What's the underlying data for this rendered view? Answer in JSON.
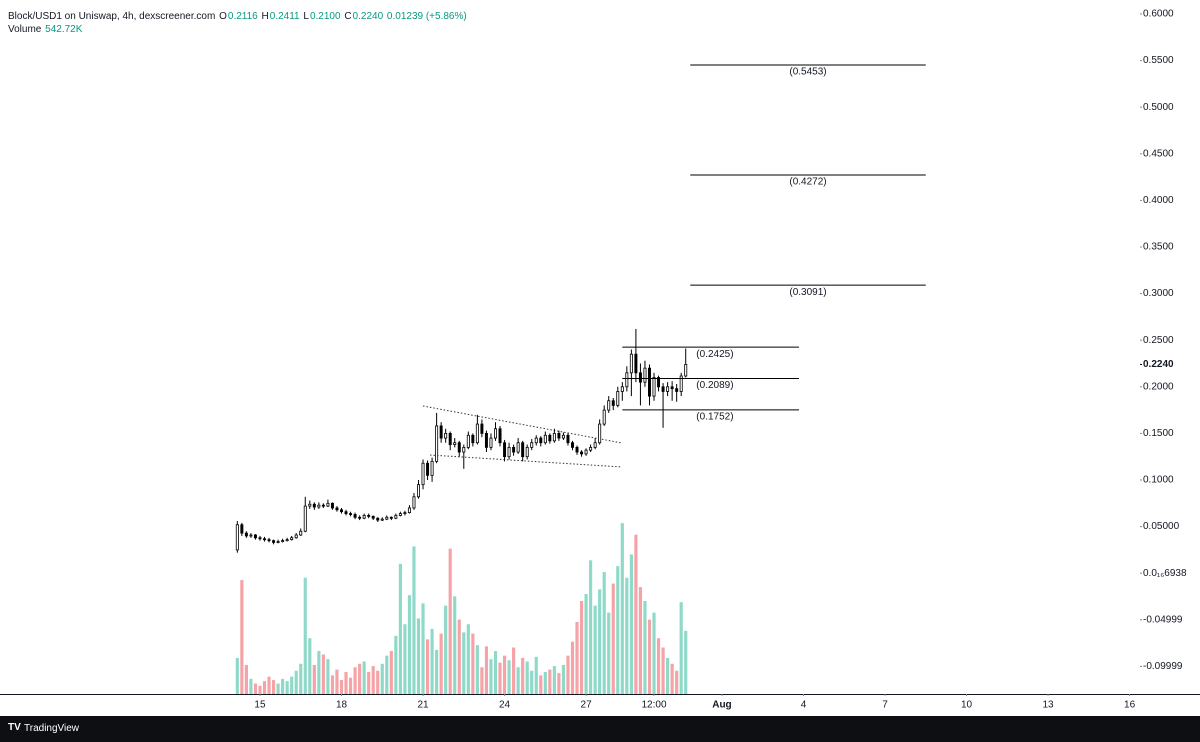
{
  "chart_data": {
    "type": "candlestick",
    "header": {
      "symbol": "Block/USD1 on Uniswap, 4h, dexscreener.com",
      "ohlc": [
        [
          "O",
          "0.2116"
        ],
        [
          "H",
          "0.2411"
        ],
        [
          "L",
          "0.2100"
        ],
        [
          "C",
          "0.2240"
        ]
      ],
      "change": "0.01239 (+5.86%)",
      "volume_name": "Volume",
      "volume_value": "542.72K"
    },
    "footer": "TradingView",
    "up_color": "#ffffff",
    "down_color": "#000000",
    "outline_color": "#000000",
    "volume_up_color": "#8fd9c9",
    "volume_down_color": "#f5a3a6",
    "xlim": [
      -57.4,
      194.3
    ],
    "xticks": [
      {
        "value": 0,
        "label": "15"
      },
      {
        "value": 18,
        "label": "18"
      },
      {
        "value": 36,
        "label": "21"
      },
      {
        "value": 54,
        "label": "24"
      },
      {
        "value": 72,
        "label": "27"
      },
      {
        "value": 87,
        "label": "12:00"
      },
      {
        "value": 102,
        "label": "Aug"
      },
      {
        "value": 120,
        "label": "4"
      },
      {
        "value": 138,
        "label": "7"
      },
      {
        "value": 156,
        "label": "10"
      },
      {
        "value": 174,
        "label": "13"
      },
      {
        "value": 192,
        "label": "16"
      }
    ],
    "ylim": [
      -0.1296,
      0.615
    ],
    "yticks": [
      {
        "value": 0.6,
        "label": "0.6000"
      },
      {
        "value": 0.55,
        "label": "0.5500"
      },
      {
        "value": 0.5,
        "label": "0.5000"
      },
      {
        "value": 0.45,
        "label": "0.4500"
      },
      {
        "value": 0.4,
        "label": "0.4000"
      },
      {
        "value": 0.35,
        "label": "0.3500"
      },
      {
        "value": 0.3,
        "label": "0.3000"
      },
      {
        "value": 0.25,
        "label": "0.2500"
      },
      {
        "value": 0.2,
        "label": "0.2000"
      },
      {
        "value": 0.15,
        "label": "0.1500"
      },
      {
        "value": 0.1,
        "label": "0.1000"
      },
      {
        "value": 0.05,
        "label": "0.05000"
      },
      {
        "value": 6.938e-17,
        "label": "0.0₁₆6938"
      },
      {
        "value": -0.04999,
        "label": "-0.04999"
      },
      {
        "value": -0.09999,
        "label": "-0.09999"
      }
    ],
    "last_price": {
      "value": 0.224,
      "label": "0.2240"
    },
    "volume_ylim": [
      0,
      5970000
    ],
    "levels": [
      {
        "value": 0.5453,
        "label": "(0.5453)",
        "xlim": [
          95,
          147
        ]
      },
      {
        "value": 0.4272,
        "label": "(0.4272)",
        "xlim": [
          95,
          147
        ]
      },
      {
        "value": 0.3091,
        "label": "(0.3091)",
        "xlim": [
          95,
          147
        ]
      },
      {
        "value": 0.2425,
        "label": "(0.2425)",
        "xlim": [
          80,
          119
        ]
      },
      {
        "value": 0.2089,
        "label": "(0.2089)",
        "xlim": [
          80,
          119
        ]
      },
      {
        "value": 0.1752,
        "label": "(0.1752)",
        "xlim": [
          80,
          119
        ]
      }
    ],
    "x": [
      -5,
      -4,
      -3,
      -2,
      -1,
      0,
      1,
      2,
      3,
      4,
      5,
      6,
      7,
      8,
      9,
      10,
      11,
      12,
      13,
      14,
      15,
      16,
      17,
      18,
      19,
      20,
      21,
      22,
      23,
      24,
      25,
      26,
      27,
      28,
      29,
      30,
      31,
      32,
      33,
      34,
      35,
      36,
      37,
      38,
      39,
      40,
      41,
      42,
      43,
      44,
      45,
      46,
      47,
      48,
      49,
      50,
      51,
      52,
      53,
      54,
      55,
      56,
      57,
      58,
      59,
      60,
      61,
      62,
      63,
      64,
      65,
      66,
      67,
      68,
      69,
      70,
      71,
      72,
      73,
      74,
      75,
      76,
      77,
      78,
      79,
      80,
      81,
      82,
      83,
      84,
      85,
      86,
      87,
      88,
      89,
      90,
      91,
      92,
      93,
      94
    ],
    "candles": [
      [
        0.025,
        0.056,
        0.022,
        0.052
      ],
      [
        0.052,
        0.054,
        0.04,
        0.043
      ],
      [
        0.043,
        0.045,
        0.038,
        0.04
      ],
      [
        0.04,
        0.043,
        0.038,
        0.041
      ],
      [
        0.041,
        0.042,
        0.036,
        0.038
      ],
      [
        0.038,
        0.04,
        0.035,
        0.037
      ],
      [
        0.037,
        0.039,
        0.034,
        0.036
      ],
      [
        0.036,
        0.038,
        0.033,
        0.035
      ],
      [
        0.035,
        0.036,
        0.031,
        0.033
      ],
      [
        0.033,
        0.036,
        0.032,
        0.034
      ],
      [
        0.034,
        0.037,
        0.033,
        0.035
      ],
      [
        0.035,
        0.038,
        0.034,
        0.036
      ],
      [
        0.036,
        0.04,
        0.035,
        0.038
      ],
      [
        0.038,
        0.043,
        0.037,
        0.041
      ],
      [
        0.041,
        0.048,
        0.04,
        0.045
      ],
      [
        0.045,
        0.082,
        0.044,
        0.072
      ],
      [
        0.072,
        0.078,
        0.069,
        0.074
      ],
      [
        0.074,
        0.076,
        0.068,
        0.071
      ],
      [
        0.071,
        0.076,
        0.069,
        0.073
      ],
      [
        0.073,
        0.075,
        0.07,
        0.072
      ],
      [
        0.072,
        0.079,
        0.071,
        0.075
      ],
      [
        0.075,
        0.076,
        0.068,
        0.07
      ],
      [
        0.07,
        0.072,
        0.066,
        0.068
      ],
      [
        0.068,
        0.07,
        0.064,
        0.066
      ],
      [
        0.066,
        0.068,
        0.062,
        0.064
      ],
      [
        0.064,
        0.066,
        0.061,
        0.063
      ],
      [
        0.063,
        0.065,
        0.058,
        0.06
      ],
      [
        0.06,
        0.062,
        0.057,
        0.059
      ],
      [
        0.059,
        0.064,
        0.058,
        0.062
      ],
      [
        0.062,
        0.064,
        0.059,
        0.061
      ],
      [
        0.061,
        0.062,
        0.057,
        0.059
      ],
      [
        0.059,
        0.06,
        0.055,
        0.057
      ],
      [
        0.057,
        0.06,
        0.056,
        0.058
      ],
      [
        0.058,
        0.062,
        0.057,
        0.06
      ],
      [
        0.06,
        0.061,
        0.057,
        0.059
      ],
      [
        0.059,
        0.064,
        0.058,
        0.062
      ],
      [
        0.062,
        0.066,
        0.061,
        0.064
      ],
      [
        0.064,
        0.067,
        0.062,
        0.065
      ],
      [
        0.065,
        0.073,
        0.064,
        0.07
      ],
      [
        0.07,
        0.086,
        0.068,
        0.082
      ],
      [
        0.082,
        0.1,
        0.08,
        0.095
      ],
      [
        0.095,
        0.122,
        0.09,
        0.118
      ],
      [
        0.118,
        0.121,
        0.1,
        0.105
      ],
      [
        0.105,
        0.124,
        0.098,
        0.12
      ],
      [
        0.12,
        0.172,
        0.118,
        0.158
      ],
      [
        0.158,
        0.162,
        0.14,
        0.145
      ],
      [
        0.145,
        0.155,
        0.14,
        0.15
      ],
      [
        0.15,
        0.152,
        0.132,
        0.138
      ],
      [
        0.138,
        0.145,
        0.135,
        0.14
      ],
      [
        0.14,
        0.142,
        0.125,
        0.13
      ],
      [
        0.13,
        0.138,
        0.112,
        0.135
      ],
      [
        0.135,
        0.152,
        0.133,
        0.148
      ],
      [
        0.148,
        0.15,
        0.136,
        0.14
      ],
      [
        0.14,
        0.17,
        0.138,
        0.16
      ],
      [
        0.16,
        0.165,
        0.146,
        0.15
      ],
      [
        0.15,
        0.153,
        0.13,
        0.135
      ],
      [
        0.135,
        0.15,
        0.132,
        0.145
      ],
      [
        0.145,
        0.162,
        0.142,
        0.155
      ],
      [
        0.155,
        0.158,
        0.136,
        0.14
      ],
      [
        0.14,
        0.143,
        0.12,
        0.125
      ],
      [
        0.125,
        0.14,
        0.122,
        0.135
      ],
      [
        0.135,
        0.138,
        0.126,
        0.13
      ],
      [
        0.13,
        0.145,
        0.128,
        0.14
      ],
      [
        0.14,
        0.142,
        0.12,
        0.125
      ],
      [
        0.125,
        0.138,
        0.122,
        0.135
      ],
      [
        0.135,
        0.144,
        0.132,
        0.14
      ],
      [
        0.14,
        0.148,
        0.137,
        0.145
      ],
      [
        0.145,
        0.147,
        0.136,
        0.14
      ],
      [
        0.14,
        0.152,
        0.138,
        0.148
      ],
      [
        0.148,
        0.15,
        0.139,
        0.142
      ],
      [
        0.142,
        0.155,
        0.14,
        0.15
      ],
      [
        0.15,
        0.153,
        0.142,
        0.145
      ],
      [
        0.145,
        0.151,
        0.143,
        0.148
      ],
      [
        0.148,
        0.15,
        0.137,
        0.14
      ],
      [
        0.14,
        0.142,
        0.132,
        0.135
      ],
      [
        0.135,
        0.137,
        0.127,
        0.13
      ],
      [
        0.13,
        0.132,
        0.125,
        0.128
      ],
      [
        0.128,
        0.134,
        0.126,
        0.132
      ],
      [
        0.132,
        0.138,
        0.13,
        0.135
      ],
      [
        0.135,
        0.145,
        0.133,
        0.14
      ],
      [
        0.14,
        0.165,
        0.138,
        0.16
      ],
      [
        0.16,
        0.18,
        0.158,
        0.175
      ],
      [
        0.175,
        0.19,
        0.172,
        0.185
      ],
      [
        0.185,
        0.188,
        0.175,
        0.18
      ],
      [
        0.18,
        0.2,
        0.178,
        0.195
      ],
      [
        0.195,
        0.205,
        0.185,
        0.2
      ],
      [
        0.2,
        0.222,
        0.195,
        0.215
      ],
      [
        0.215,
        0.24,
        0.19,
        0.235
      ],
      [
        0.235,
        0.262,
        0.205,
        0.215
      ],
      [
        0.215,
        0.225,
        0.18,
        0.205
      ],
      [
        0.205,
        0.228,
        0.2,
        0.22
      ],
      [
        0.22,
        0.224,
        0.18,
        0.19
      ],
      [
        0.19,
        0.215,
        0.185,
        0.21
      ],
      [
        0.21,
        0.212,
        0.195,
        0.2
      ],
      [
        0.2,
        0.204,
        0.156,
        0.195
      ],
      [
        0.195,
        0.205,
        0.19,
        0.2
      ],
      [
        0.2,
        0.206,
        0.185,
        0.198
      ],
      [
        0.198,
        0.203,
        0.184,
        0.195
      ],
      [
        0.195,
        0.215,
        0.19,
        0.2116
      ],
      [
        0.2116,
        0.2411,
        0.21,
        0.224
      ]
    ],
    "volume": [
      310000,
      980000,
      250000,
      130000,
      90000,
      70000,
      110000,
      150000,
      120000,
      90000,
      130000,
      110000,
      150000,
      200000,
      260000,
      1000000,
      480000,
      250000,
      370000,
      340000,
      300000,
      160000,
      210000,
      120000,
      190000,
      140000,
      230000,
      260000,
      280000,
      190000,
      240000,
      200000,
      260000,
      330000,
      370000,
      500000,
      1120000,
      600000,
      850000,
      1270000,
      650000,
      780000,
      470000,
      560000,
      380000,
      520000,
      760000,
      1250000,
      840000,
      640000,
      530000,
      600000,
      520000,
      420000,
      230000,
      410000,
      300000,
      370000,
      270000,
      330000,
      290000,
      400000,
      230000,
      310000,
      280000,
      200000,
      320000,
      160000,
      190000,
      210000,
      240000,
      180000,
      250000,
      330000,
      450000,
      620000,
      800000,
      860000,
      1150000,
      760000,
      900000,
      1050000,
      700000,
      950000,
      1100000,
      1470000,
      1000000,
      1200000,
      1370000,
      920000,
      800000,
      640000,
      700000,
      480000,
      400000,
      310000,
      260000,
      200000,
      790000,
      542720
    ]
  }
}
